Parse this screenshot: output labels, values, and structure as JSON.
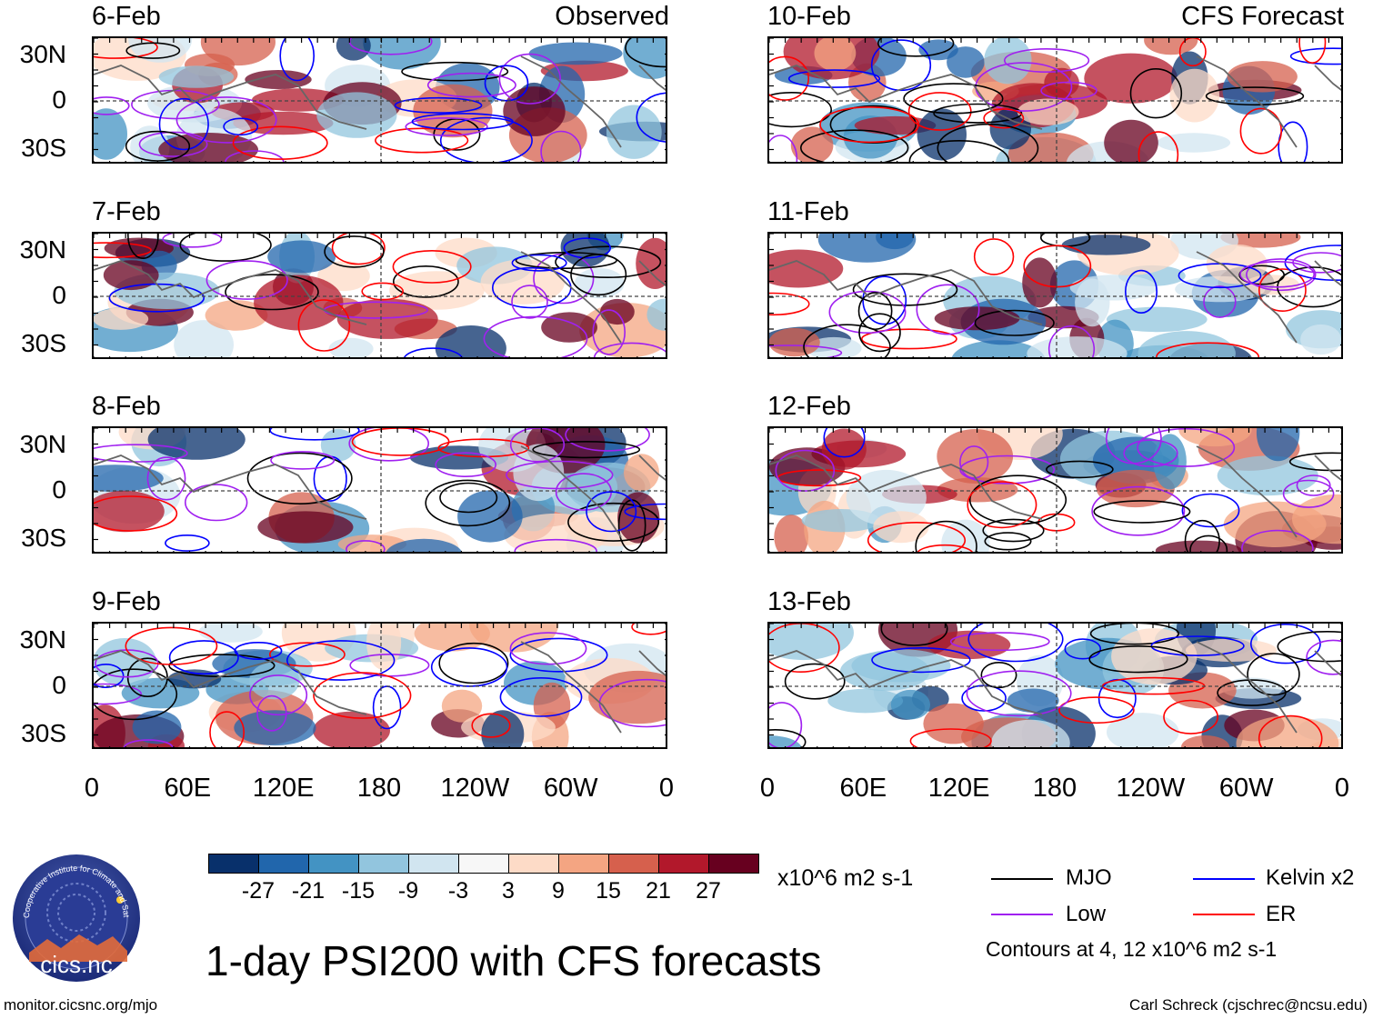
{
  "header": {
    "observed_label": "Observed",
    "forecast_label": "CFS Forecast"
  },
  "observed_panels": [
    {
      "date": "6-Feb"
    },
    {
      "date": "7-Feb"
    },
    {
      "date": "8-Feb"
    },
    {
      "date": "9-Feb"
    }
  ],
  "forecast_panels": [
    {
      "date": "10-Feb"
    },
    {
      "date": "11-Feb"
    },
    {
      "date": "12-Feb"
    },
    {
      "date": "13-Feb"
    }
  ],
  "axes": {
    "lat_ticks": [
      "30N",
      "0",
      "30S"
    ],
    "lon_ticks": [
      "0",
      "60E",
      "120E",
      "180",
      "120W",
      "60W",
      "0"
    ]
  },
  "colorbar": {
    "colors": [
      "#08306b",
      "#2166ac",
      "#4393c3",
      "#92c5de",
      "#d1e5f0",
      "#f7f7f7",
      "#fddbc7",
      "#f4a582",
      "#d6604d",
      "#b2182b",
      "#67001f"
    ],
    "ticks": [
      "-27",
      "-21",
      "-15",
      "-9",
      "-3",
      "3",
      "9",
      "15",
      "21",
      "27"
    ],
    "units": "x10^6 m2 s-1"
  },
  "legend": {
    "mjo": {
      "label": "MJO",
      "color": "#000000"
    },
    "kelvin": {
      "label": "Kelvin x2",
      "color": "#0000ff"
    },
    "low": {
      "label": "Low",
      "color": "#a020f0"
    },
    "er": {
      "label": "ER",
      "color": "#ff0000"
    },
    "contours_note": "Contours at 4, 12 x10^6 m2 s-1"
  },
  "title": "1-day PSI200 with CFS forecasts",
  "logo": {
    "text": "cics.nc",
    "ring_text": "Cooperative Institute for Climate and Satellites"
  },
  "footer": {
    "url": "monitor.cicsnc.org/mjo",
    "author": "Carl Schreck (cjschrec@ncsu.edu)"
  }
}
